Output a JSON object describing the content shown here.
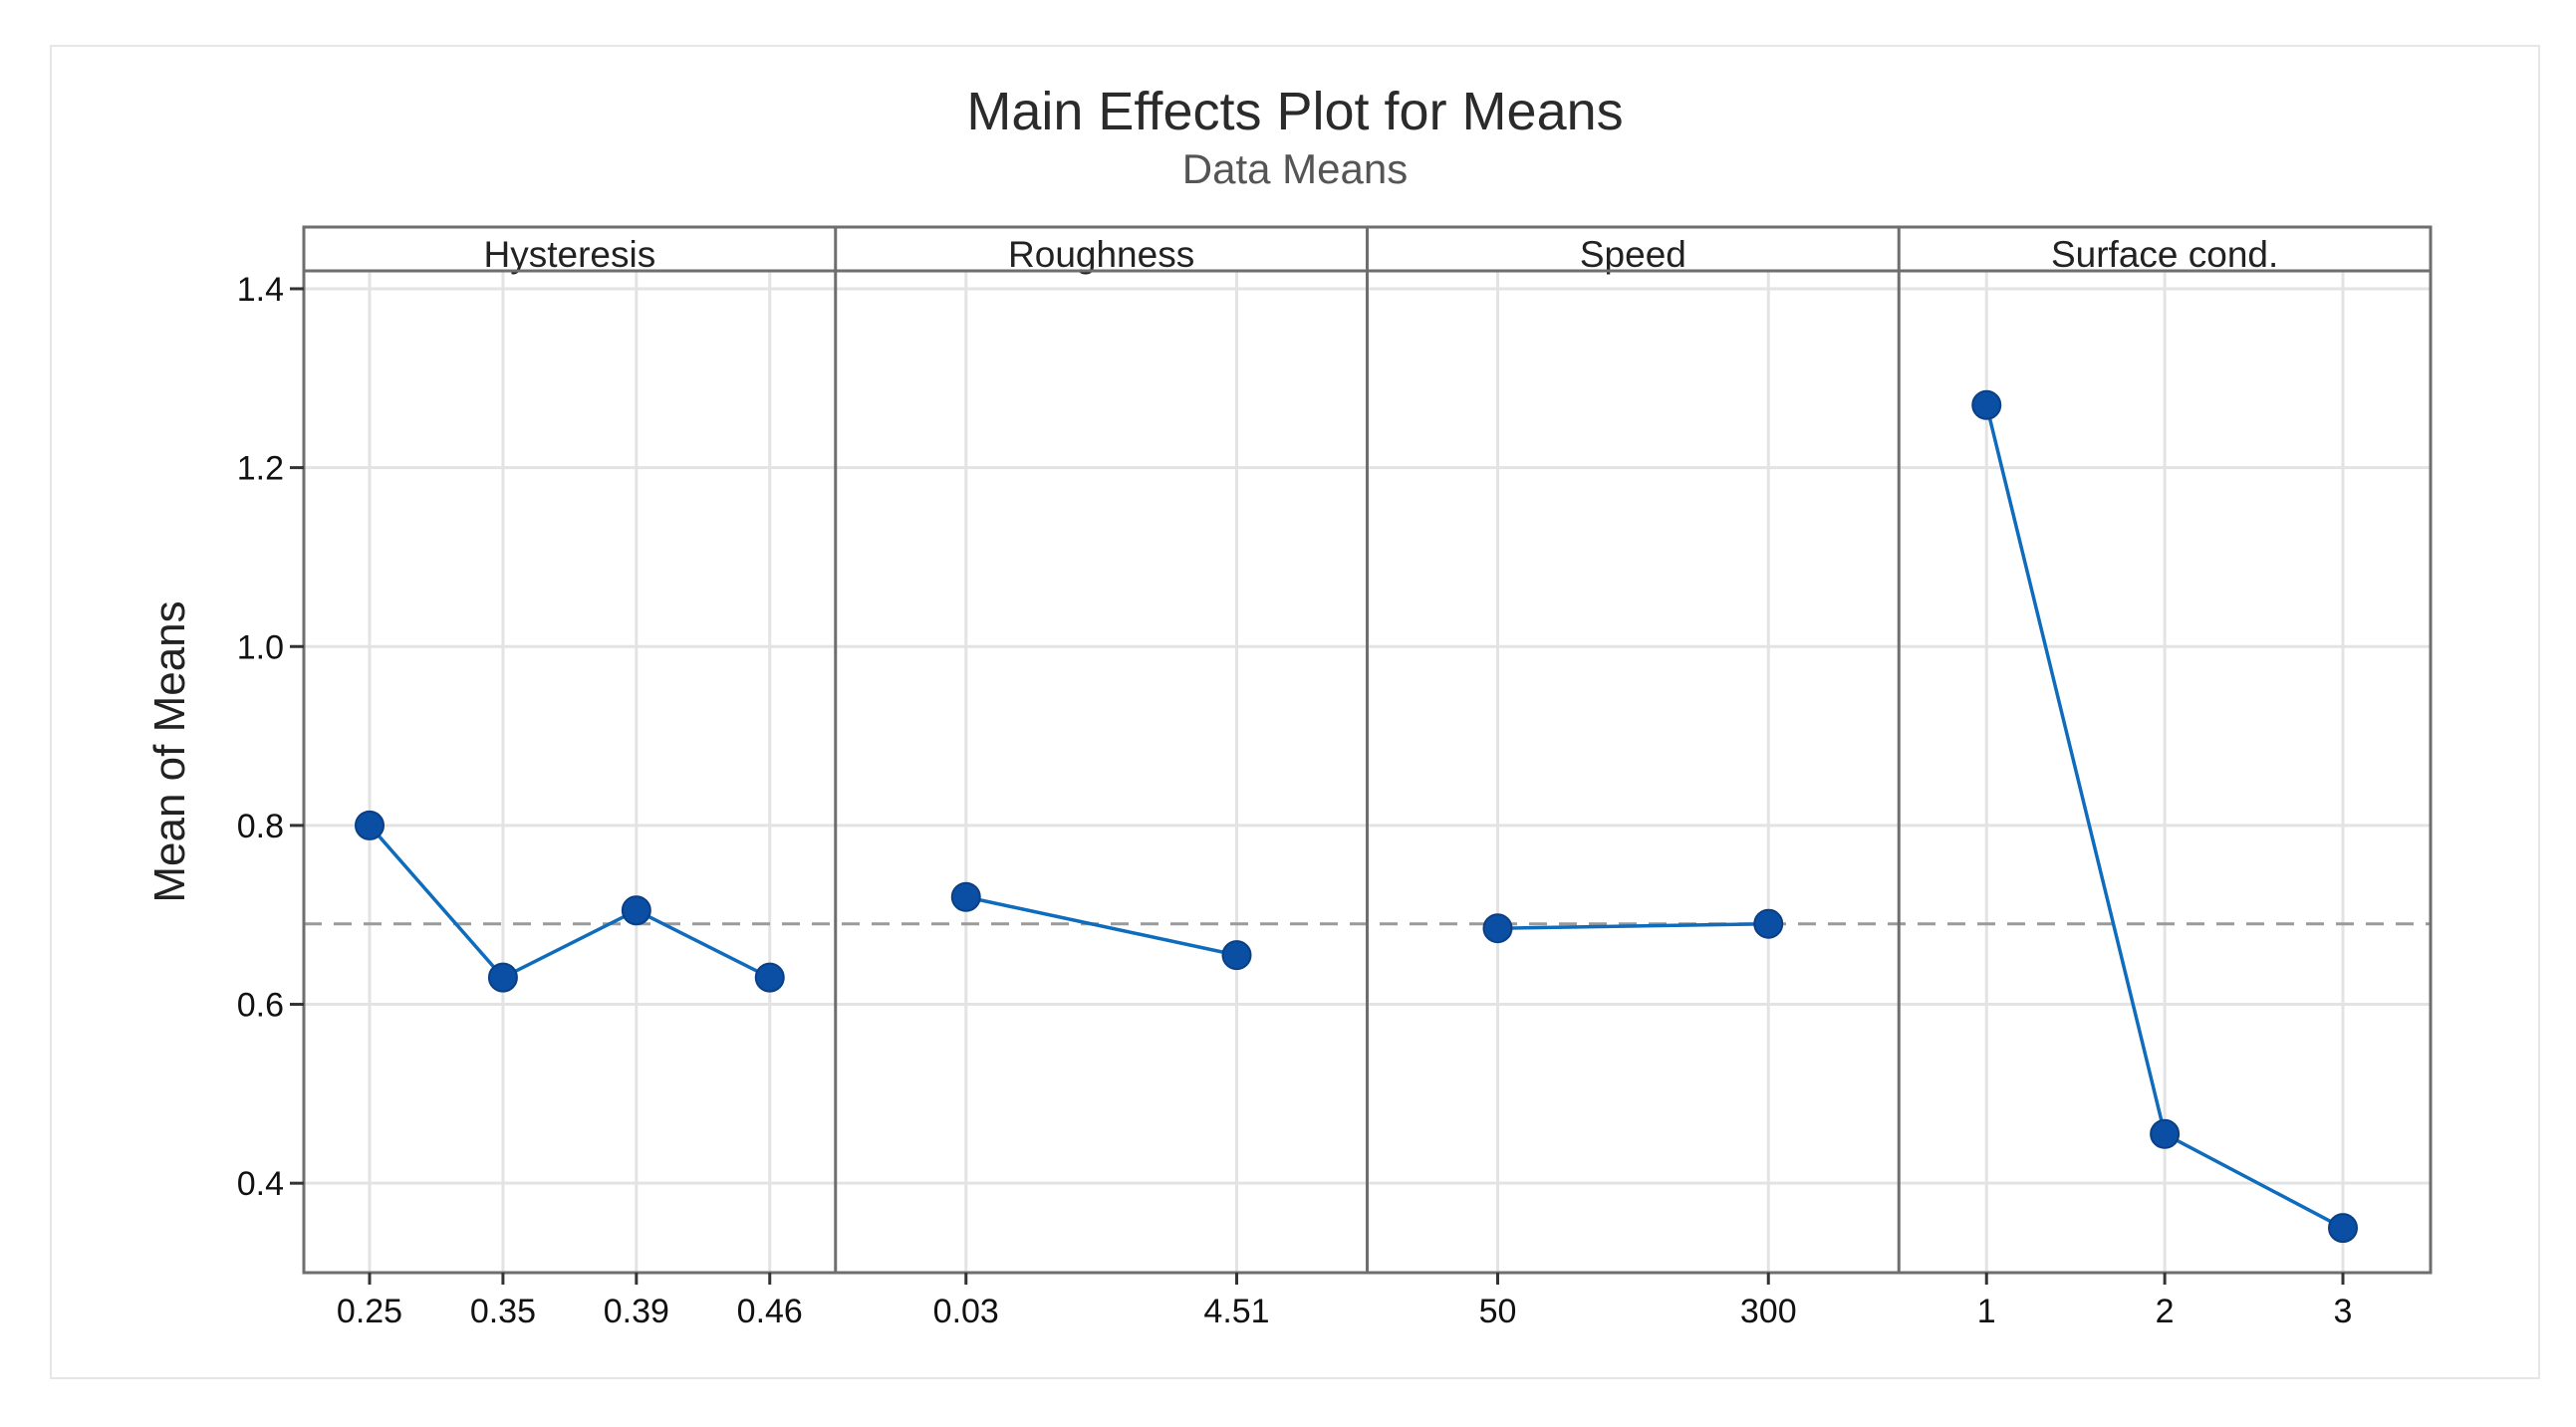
{
  "chart_data": {
    "type": "line",
    "title": "Main Effects Plot for Means",
    "subtitle": "Data Means",
    "ylabel": "Mean of Means",
    "ylim": [
      0.3,
      1.42
    ],
    "yticks": [
      "1.4",
      "1.2",
      "1.0",
      "0.8",
      "0.6",
      "0.4"
    ],
    "reference_line": 0.69,
    "grid": true,
    "panels": [
      {
        "name": "Hysteresis",
        "categories": [
          "0.25",
          "0.35",
          "0.39",
          "0.46"
        ],
        "values": [
          0.8,
          0.63,
          0.705,
          0.63
        ]
      },
      {
        "name": "Roughness",
        "categories": [
          "0.03",
          "4.51"
        ],
        "values": [
          0.72,
          0.655
        ]
      },
      {
        "name": "Speed",
        "categories": [
          "50",
          "300"
        ],
        "values": [
          0.685,
          0.69
        ]
      },
      {
        "name": "Surface cond.",
        "categories": [
          "1",
          "2",
          "3"
        ],
        "values": [
          1.27,
          0.455,
          0.35
        ]
      }
    ],
    "colors": {
      "series": "#0f6cbd",
      "marker": "#0a4fa3",
      "reference": "#9a9a9a",
      "grid": "#e3e3e3",
      "frame": "#6e6e6e"
    }
  }
}
